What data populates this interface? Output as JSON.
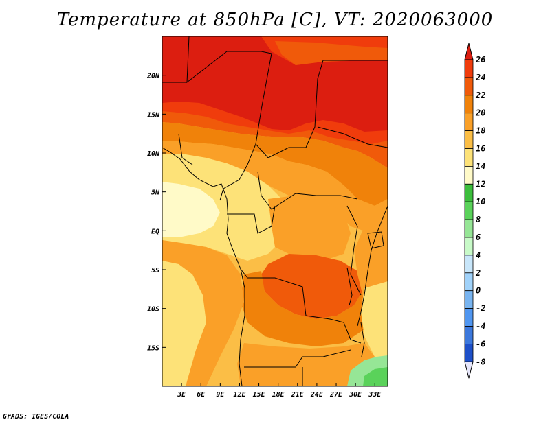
{
  "title": "Temperature at 850hPa [C], VT: 2020063000",
  "credit": "GrADS: IGES/COLA",
  "map": {
    "lon_range": [
      0,
      35
    ],
    "lat_range": [
      -20,
      25
    ],
    "lon_ticks": [
      "3E",
      "6E",
      "9E",
      "12E",
      "15E",
      "18E",
      "21E",
      "24E",
      "27E",
      "30E",
      "33E"
    ],
    "lat_ticks": [
      "20N",
      "15N",
      "10N",
      "5N",
      "EQ",
      "5S",
      "10S",
      "15S"
    ]
  },
  "colorbar": {
    "levels": [
      "26",
      "24",
      "22",
      "20",
      "18",
      "16",
      "14",
      "12",
      "10",
      "8",
      "6",
      "4",
      "2",
      "0",
      "-2",
      "-4",
      "-6",
      "-8"
    ],
    "colors": [
      "#dc1e10",
      "#f03c0c",
      "#f05a0a",
      "#f0820a",
      "#faa028",
      "#fbbe46",
      "#fde278",
      "#fffac8",
      "#3cbe3c",
      "#5ad25a",
      "#96e696",
      "#c8fac8",
      "#c8e6fa",
      "#a0d2fa",
      "#78b4f0",
      "#5096f0",
      "#3c78dc",
      "#1e50c8",
      "#1432aa",
      "#0a1478"
    ]
  },
  "palette": {
    "t26": "#dc1e10",
    "t24": "#f03c0c",
    "t22": "#f05a0a",
    "t20": "#f0820a",
    "t18": "#faa028",
    "t16": "#fbbe46",
    "t14": "#fde278",
    "t12": "#fffac8",
    "g1": "#3cbe3c",
    "g2": "#5ad25a",
    "g3": "#96e696"
  }
}
